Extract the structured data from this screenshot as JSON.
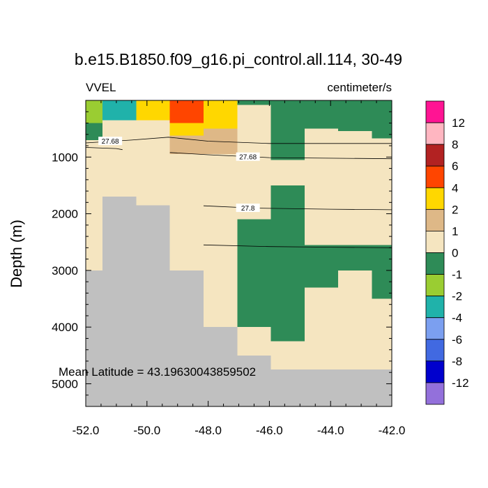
{
  "chart_data": {
    "type": "heatmap",
    "title": "b.e15.B1850.f09_g16.pi_control.all.114, 30-49",
    "left_string": "VVEL",
    "right_string": "centimeter/s",
    "ylabel": "Depth (m)",
    "annotation": "Mean Latitude = 43.19630043859502",
    "xlim": [
      -52.0,
      -42.0
    ],
    "ylim": [
      5400,
      0
    ],
    "x_ticks": [
      -52.0,
      -50.0,
      -48.0,
      -46.0,
      -44.0,
      -42.0
    ],
    "x_tick_labels": [
      "-52.0",
      "-50.0",
      "-48.0",
      "-46.0",
      "-44.0",
      "-42.0"
    ],
    "y_ticks": [
      1000,
      2000,
      3000,
      4000,
      5000
    ],
    "y_tick_labels": [
      "1000",
      "2000",
      "3000",
      "4000",
      "5000"
    ],
    "colorbar": {
      "labels": [
        "12",
        "8",
        "6",
        "4",
        "2",
        "1",
        "0",
        "-1",
        "-2",
        "-4",
        "-6",
        "-8",
        "-12"
      ],
      "colors": [
        "#ff1493",
        "#ffb6c1",
        "#b22222",
        "#ff4500",
        "#ffd700",
        "#deb887",
        "#f5e5c0",
        "#2e8b57",
        "#9acd32",
        "#20b2aa",
        "#7b9ff0",
        "#4169e1",
        "#0000cd",
        "#9370db"
      ]
    },
    "colors": {
      "land": "#c0c0c0",
      "c12": "#ff1493",
      "c8": "#ffb6c1",
      "c6": "#b22222",
      "c4": "#ff4500",
      "c2": "#ffd700",
      "c1": "#deb887",
      "c0": "#f5e5c0",
      "cm1": "#2e8b57",
      "cm2": "#9acd32",
      "cm4": "#20b2aa",
      "cm6": "#7b9ff0",
      "cm8": "#4169e1",
      "cm12": "#0000cd",
      "cmin": "#9370db"
    },
    "background_color": "c0",
    "cells": [
      {
        "x": [
          -52.0,
          -51.45
        ],
        "z": [
          0,
          400
        ],
        "c": "cm2"
      },
      {
        "x": [
          -52.0,
          -51.45
        ],
        "z": [
          400,
          700
        ],
        "c": "cm1"
      },
      {
        "x": [
          -51.45,
          -50.35
        ],
        "z": [
          0,
          350
        ],
        "c": "cm4"
      },
      {
        "x": [
          -50.35,
          -49.25
        ],
        "z": [
          0,
          350
        ],
        "c": "c2"
      },
      {
        "x": [
          -49.25,
          -48.15
        ],
        "z": [
          0,
          400
        ],
        "c": "c4"
      },
      {
        "x": [
          -49.25,
          -48.15
        ],
        "z": [
          400,
          620
        ],
        "c": "c2"
      },
      {
        "x": [
          -49.25,
          -48.15
        ],
        "z": [
          620,
          950
        ],
        "c": "c1"
      },
      {
        "x": [
          -48.15,
          -47.05
        ],
        "z": [
          0,
          500
        ],
        "c": "c2"
      },
      {
        "x": [
          -48.15,
          -47.05
        ],
        "z": [
          500,
          950
        ],
        "c": "c1"
      },
      {
        "x": [
          -47.05,
          -45.95
        ],
        "z": [
          0,
          80
        ],
        "c": "cm1"
      },
      {
        "x": [
          -45.95,
          -44.85
        ],
        "z": [
          0,
          1050
        ],
        "c": "cm1"
      },
      {
        "x": [
          -44.85,
          -43.75
        ],
        "z": [
          0,
          500
        ],
        "c": "cm1"
      },
      {
        "x": [
          -43.75,
          -42.65
        ],
        "z": [
          0,
          540
        ],
        "c": "cm1"
      },
      {
        "x": [
          -42.65,
          -42.0
        ],
        "z": [
          0,
          670
        ],
        "c": "cm1"
      },
      {
        "x": [
          -45.95,
          -44.85
        ],
        "z": [
          1500,
          2100
        ],
        "c": "cm1"
      },
      {
        "x": [
          -47.05,
          -44.85
        ],
        "z": [
          2100,
          2550
        ],
        "c": "cm1"
      },
      {
        "x": [
          -47.05,
          -42.0
        ],
        "z": [
          2550,
          3000
        ],
        "c": "cm1"
      },
      {
        "x": [
          -47.05,
          -43.75
        ],
        "z": [
          3000,
          3300
        ],
        "c": "cm1"
      },
      {
        "x": [
          -42.65,
          -42.0
        ],
        "z": [
          3000,
          3500
        ],
        "c": "cm1"
      },
      {
        "x": [
          -47.05,
          -44.85
        ],
        "z": [
          3300,
          3500
        ],
        "c": "cm1"
      },
      {
        "x": [
          -47.05,
          -45.95
        ],
        "z": [
          3500,
          4000
        ],
        "c": "cm1"
      },
      {
        "x": [
          -45.95,
          -44.85
        ],
        "z": [
          3500,
          4250
        ],
        "c": "cm1"
      },
      {
        "x": [
          -52.0,
          -51.45
        ],
        "z": [
          3000,
          5400
        ],
        "c": "land"
      },
      {
        "x": [
          -51.45,
          -50.35
        ],
        "z": [
          1700,
          5400
        ],
        "c": "land"
      },
      {
        "x": [
          -50.35,
          -49.25
        ],
        "z": [
          1850,
          5400
        ],
        "c": "land"
      },
      {
        "x": [
          -49.25,
          -48.15
        ],
        "z": [
          3000,
          5400
        ],
        "c": "land"
      },
      {
        "x": [
          -48.15,
          -47.05
        ],
        "z": [
          4000,
          5400
        ],
        "c": "land"
      },
      {
        "x": [
          -47.05,
          -45.95
        ],
        "z": [
          4500,
          5400
        ],
        "c": "land"
      },
      {
        "x": [
          -45.95,
          -42.0
        ],
        "z": [
          4750,
          5400
        ],
        "c": "land"
      }
    ],
    "contours": [
      {
        "label": "27.68",
        "points": [
          [
            -52.0,
            750
          ],
          [
            -50.5,
            700
          ],
          [
            -49.3,
            650
          ],
          [
            -48.0,
            720
          ],
          [
            -46.0,
            760
          ],
          [
            -42.0,
            760
          ]
        ],
        "label_at": 1
      },
      {
        "label": "",
        "points": [
          [
            -52.0,
            830
          ],
          [
            -51.0,
            850
          ],
          [
            -50.8,
            870
          ]
        ]
      },
      {
        "label": "27.68",
        "points": [
          [
            -49.25,
            920
          ],
          [
            -48.0,
            960
          ],
          [
            -46.0,
            1010
          ],
          [
            -42.0,
            1030
          ]
        ],
        "label_at": -46.7
      },
      {
        "label": "27.8",
        "points": [
          [
            -48.15,
            1860
          ],
          [
            -46.5,
            1900
          ],
          [
            -44.0,
            1920
          ],
          [
            -42.0,
            1930
          ]
        ],
        "label_at": -46.7
      },
      {
        "label": "",
        "points": [
          [
            -48.15,
            2550
          ],
          [
            -46.0,
            2580
          ],
          [
            -44.0,
            2590
          ],
          [
            -42.0,
            2600
          ]
        ]
      }
    ]
  }
}
